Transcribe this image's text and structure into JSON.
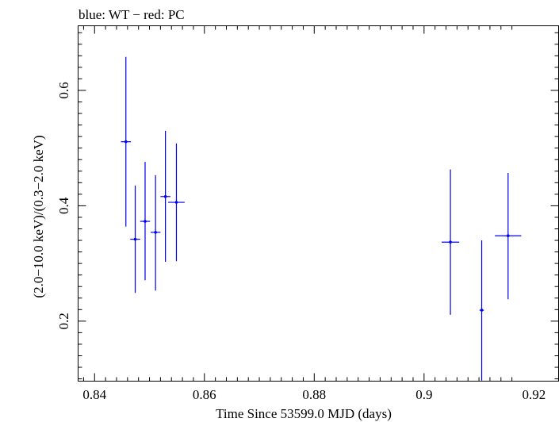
{
  "chart_data": {
    "type": "scatter",
    "title": "blue: WT − red: PC",
    "xlabel": "Time Since 53599.0 MJD (days)",
    "ylabel": "(2.0−10.0 keV)/(0.3−2.0 keV)",
    "xlim": [
      0.837,
      0.9245
    ],
    "ylim": [
      0.096,
      0.712
    ],
    "x_ticks": [
      0.84,
      0.86,
      0.88,
      0.9,
      0.92
    ],
    "x_tick_labels": [
      "0.84",
      "0.86",
      "0.88",
      "0.9",
      "0.92"
    ],
    "y_ticks": [
      0.2,
      0.4,
      0.6
    ],
    "y_tick_labels": [
      "0.2",
      "0.4",
      "0.6"
    ],
    "grid": false,
    "series": [
      {
        "color": "#0000ee",
        "points": [
          {
            "x": 0.8457,
            "y": 0.511,
            "xerr": 0.0009,
            "ylo": 0.364,
            "yhi": 0.658
          },
          {
            "x": 0.8474,
            "y": 0.342,
            "xerr": 0.0009,
            "ylo": 0.249,
            "yhi": 0.435
          },
          {
            "x": 0.8492,
            "y": 0.373,
            "xerr": 0.0009,
            "ylo": 0.271,
            "yhi": 0.476
          },
          {
            "x": 0.8511,
            "y": 0.354,
            "xerr": 0.0009,
            "ylo": 0.253,
            "yhi": 0.453
          },
          {
            "x": 0.8529,
            "y": 0.416,
            "xerr": 0.0009,
            "ylo": 0.303,
            "yhi": 0.53
          },
          {
            "x": 0.8549,
            "y": 0.406,
            "xerr": 0.0015,
            "ylo": 0.304,
            "yhi": 0.508
          },
          {
            "x": 0.9048,
            "y": 0.337,
            "xerr": 0.0016,
            "ylo": 0.211,
            "yhi": 0.463
          },
          {
            "x": 0.9105,
            "y": 0.219,
            "xerr": 0.0004,
            "ylo": 0.097,
            "yhi": 0.34
          },
          {
            "x": 0.9153,
            "y": 0.348,
            "xerr": 0.0024,
            "ylo": 0.238,
            "yhi": 0.457
          }
        ]
      }
    ]
  }
}
